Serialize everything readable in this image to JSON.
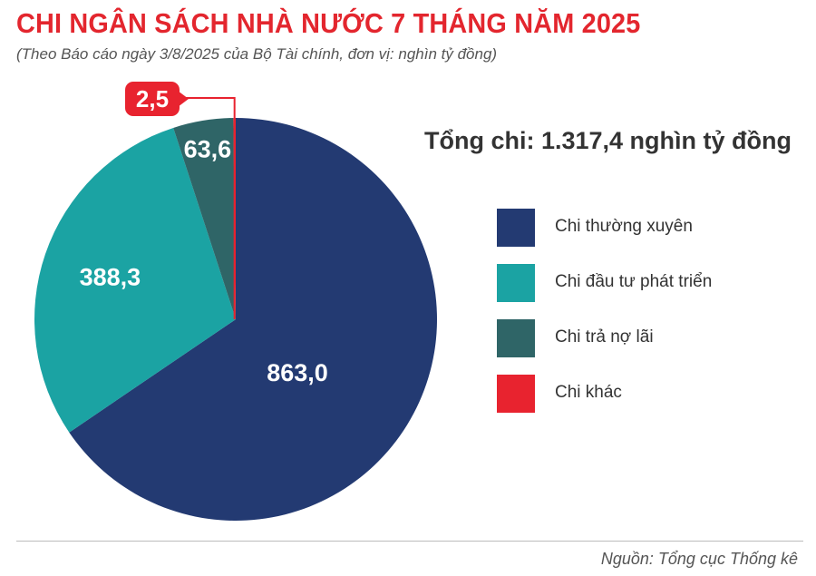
{
  "header": {
    "title": "CHI NGÂN SÁCH NHÀ NƯỚC 7 THÁNG NĂM 2025",
    "subtitle": "(Theo Báo cáo ngày 3/8/2025 của Bộ Tài chính, đơn vị: nghìn tỷ đồng)"
  },
  "summary": {
    "total": "Tổng chi: 1.317,4 nghìn tỷ đồng"
  },
  "chart_data": {
    "type": "pie",
    "title": "CHI NGÂN SÁCH NHÀ NƯỚC 7 THÁNG NĂM 2025",
    "start_angle": "12 o'clock",
    "direction": "clockwise",
    "slices": [
      {
        "label": "Chi thường xuyên",
        "value": 863.0,
        "display": "863,0",
        "color": "#233a72"
      },
      {
        "label": "Chi đầu tư phát triển",
        "value": 388.3,
        "display": "388,3",
        "color": "#1ba3a3"
      },
      {
        "label": "Chi trả nợ lãi",
        "value": 63.6,
        "display": "63,6",
        "color": "#2f6567"
      },
      {
        "label": "Chi khác",
        "value": 2.5,
        "display": "2,5",
        "color": "#e8232f"
      }
    ],
    "legend": [
      {
        "label": "Chi thường xuyên",
        "color": "#233a72"
      },
      {
        "label": "Chi đầu tư phát triển",
        "color": "#1ba3a3"
      },
      {
        "label": "Chi trả nợ lãi",
        "color": "#2f6567"
      },
      {
        "label": "Chi khác",
        "color": "#e8232f"
      }
    ],
    "legend_placement": "right"
  },
  "footer": {
    "source": "Nguồn: Tổng cục Thống kê"
  }
}
